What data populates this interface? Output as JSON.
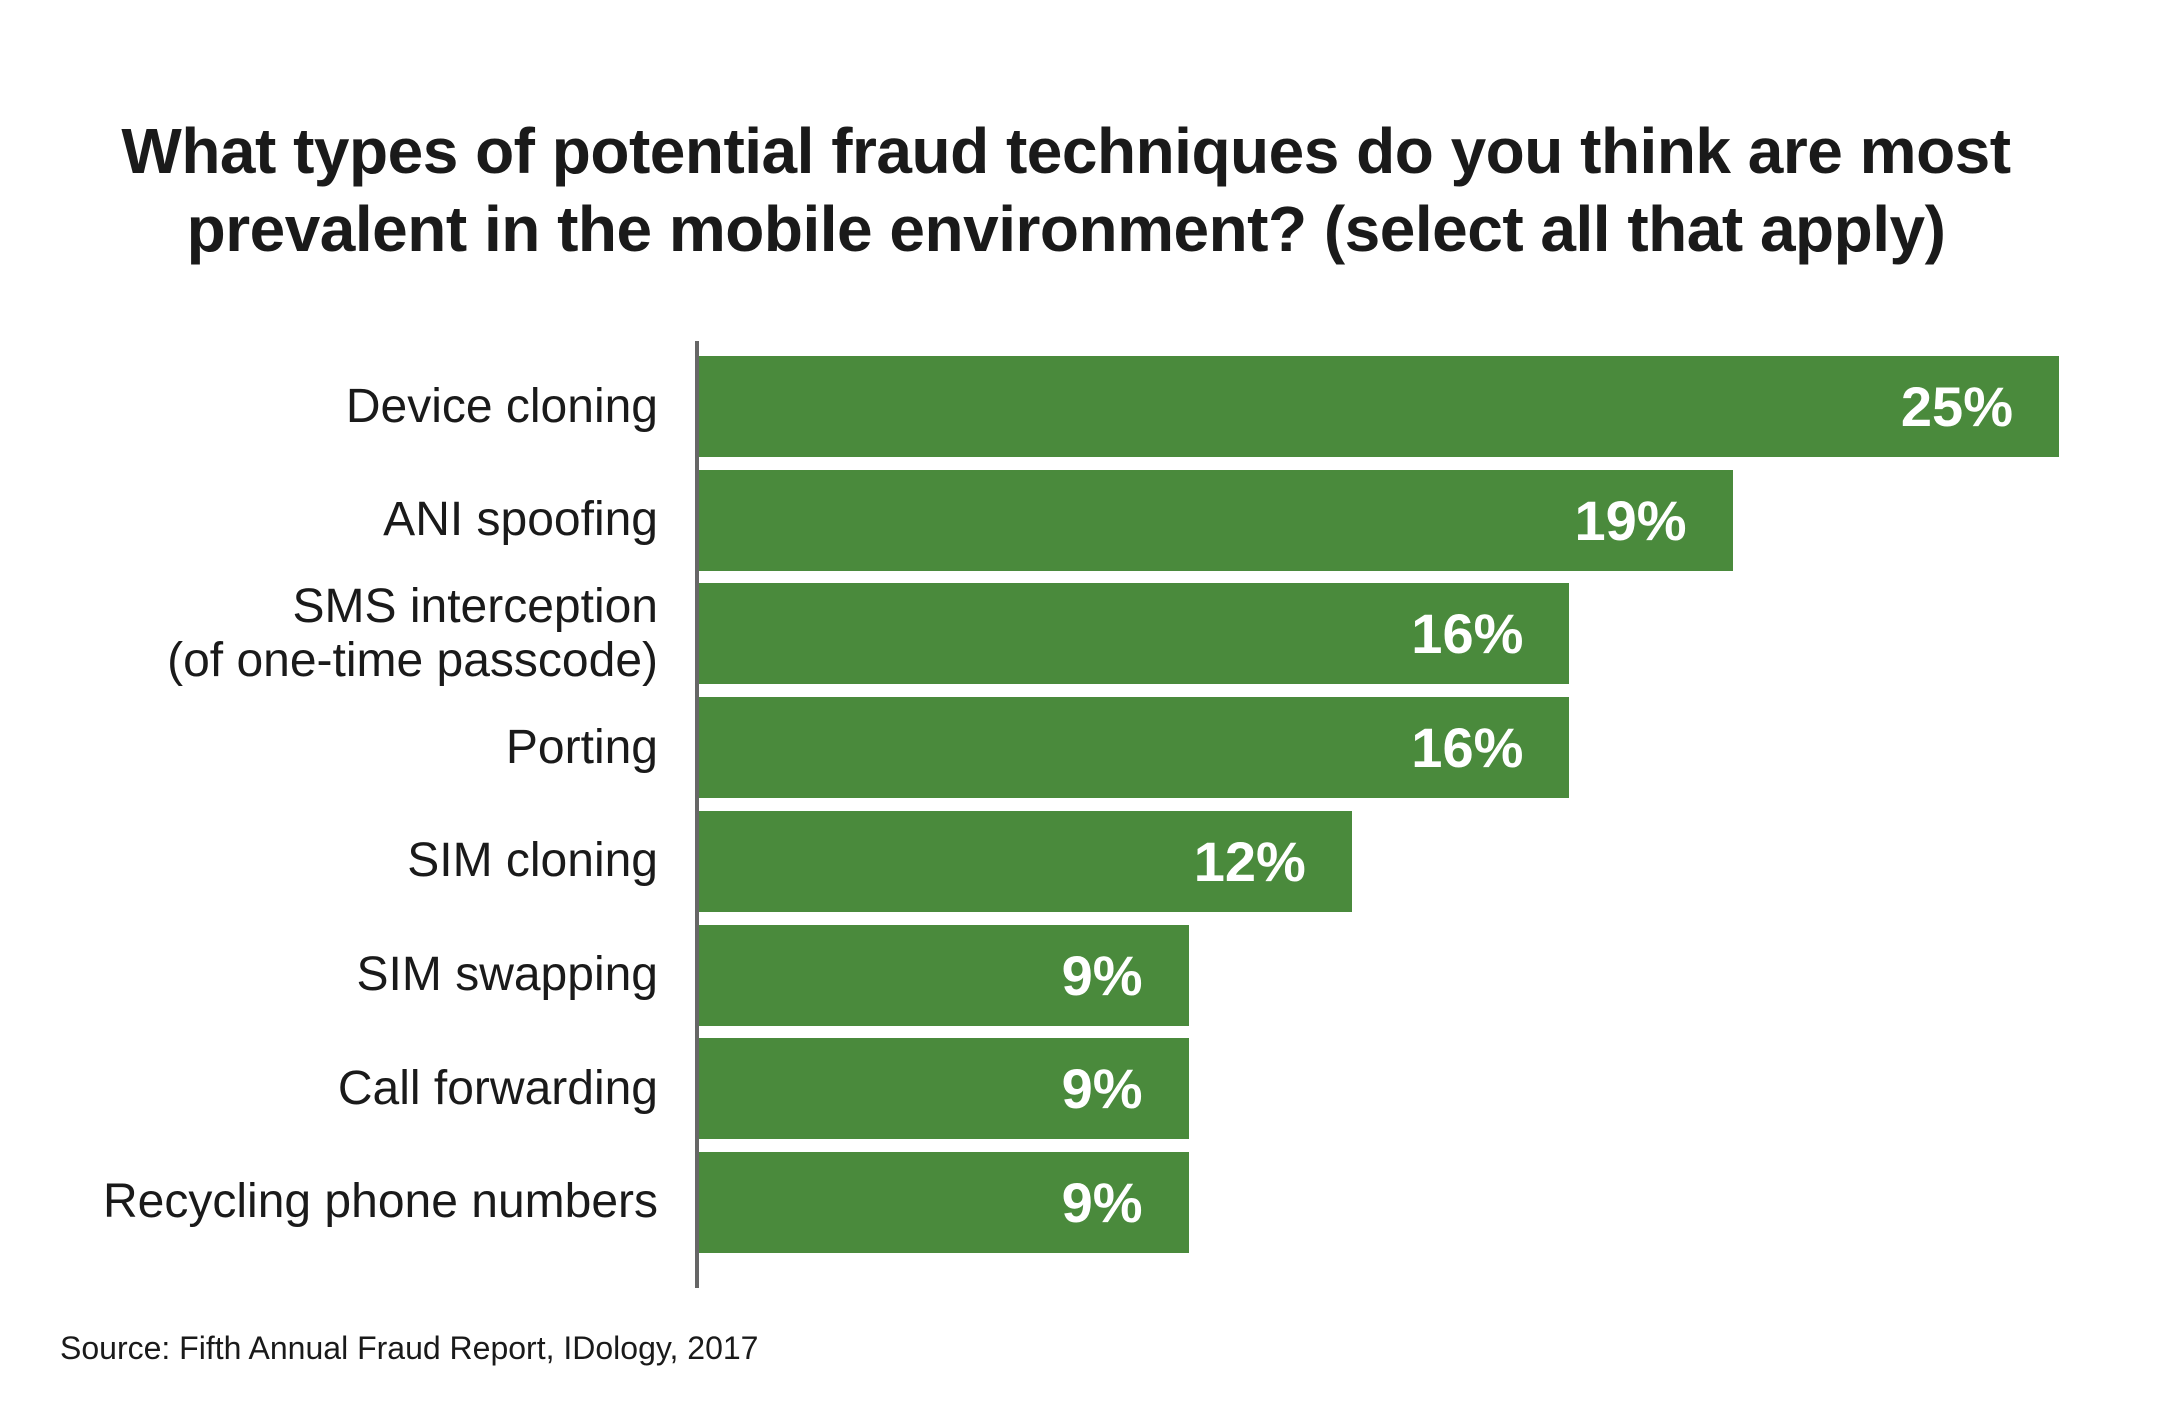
{
  "chart_data": {
    "type": "bar",
    "orientation": "horizontal",
    "title": "What types of potential fraud techniques do you think are most prevalent in the mobile environment? (select all that apply)",
    "title_lines": [
      "What types of potential fraud techniques do you think are most",
      "prevalent in the mobile environment? (select all that apply)"
    ],
    "categories": [
      "Device cloning",
      "ANI spoofing",
      "SMS interception (of one-time passcode)",
      "Porting",
      "SIM cloning",
      "SIM swapping",
      "Call forwarding",
      "Recycling phone numbers"
    ],
    "category_lines": [
      [
        "Device cloning"
      ],
      [
        "ANI spoofing"
      ],
      [
        "SMS interception",
        "(of one-time passcode)"
      ],
      [
        "Porting"
      ],
      [
        "SIM cloning"
      ],
      [
        "SIM swapping"
      ],
      [
        "Call forwarding"
      ],
      [
        "Recycling phone numbers"
      ]
    ],
    "values": [
      25,
      19,
      16,
      16,
      12,
      9,
      9,
      9
    ],
    "value_labels": [
      "25%",
      "19%",
      "16%",
      "16%",
      "12%",
      "9%",
      "9%",
      "9%"
    ],
    "xlabel": "",
    "ylabel": "",
    "xlim": [
      0,
      25
    ],
    "grid": false,
    "bar_color": "#4a8a3c"
  },
  "source": "Source:  Fifth Annual Fraud Report, IDology, 2017"
}
